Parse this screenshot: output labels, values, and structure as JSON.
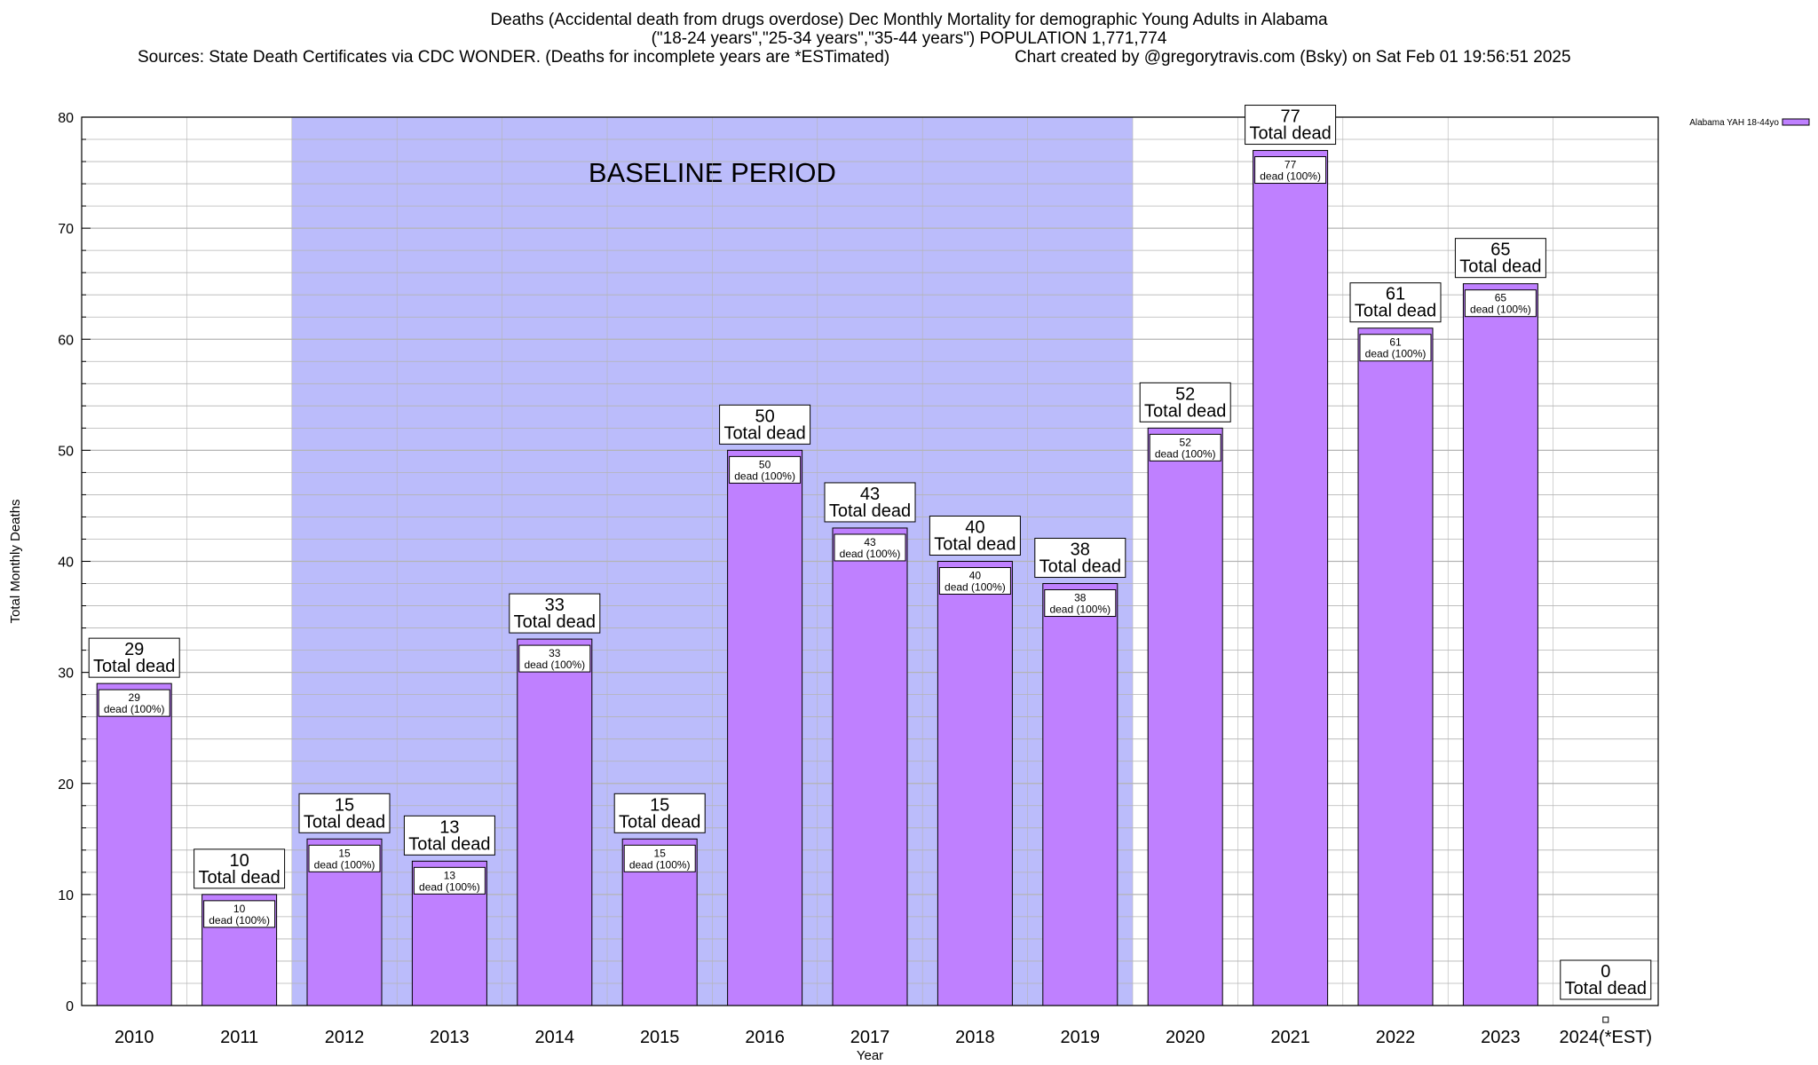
{
  "title_lines": [
    "Deaths (Accidental death from drugs overdose) Dec Monthly Mortality for demographic Young Adults in Alabama",
    "(\"18-24 years\",\"25-34 years\",\"35-44 years\") POPULATION 1,771,774"
  ],
  "sources": "Sources: State Death Certificates via CDC WONDER. (Deaths for incomplete years are *ESTimated)",
  "credit": "Chart created by @gregorytravis.com (Bsky) on Sat Feb 01 19:56:51 2025",
  "colors": {
    "bar": "#bf80ff",
    "baseline_band": "#bbbcfb",
    "grid": "#b4b4b4",
    "legend_swatch": "#bf80ff"
  },
  "chart_data": {
    "type": "bar",
    "categories": [
      "2010",
      "2011",
      "2012",
      "2013",
      "2014",
      "2015",
      "2016",
      "2017",
      "2018",
      "2019",
      "2020",
      "2021",
      "2022",
      "2023",
      "2024(*EST)"
    ],
    "series": [
      {
        "name": "Alabama YAH 18-44yo",
        "values": [
          29,
          10,
          15,
          13,
          33,
          15,
          50,
          43,
          40,
          38,
          52,
          77,
          61,
          65,
          0
        ]
      }
    ],
    "xlabel": "Year",
    "ylabel": "Total Monthly Deaths",
    "ylim": [
      0,
      80
    ],
    "yticks": [
      0,
      10,
      20,
      30,
      40,
      50,
      60,
      70,
      80
    ],
    "grid": true,
    "legend": "top-right",
    "total_label": "Total dead",
    "inner_label": "dead (100%)",
    "baseline": {
      "label": "BASELINE PERIOD",
      "from": "2012",
      "to": "2019"
    }
  }
}
